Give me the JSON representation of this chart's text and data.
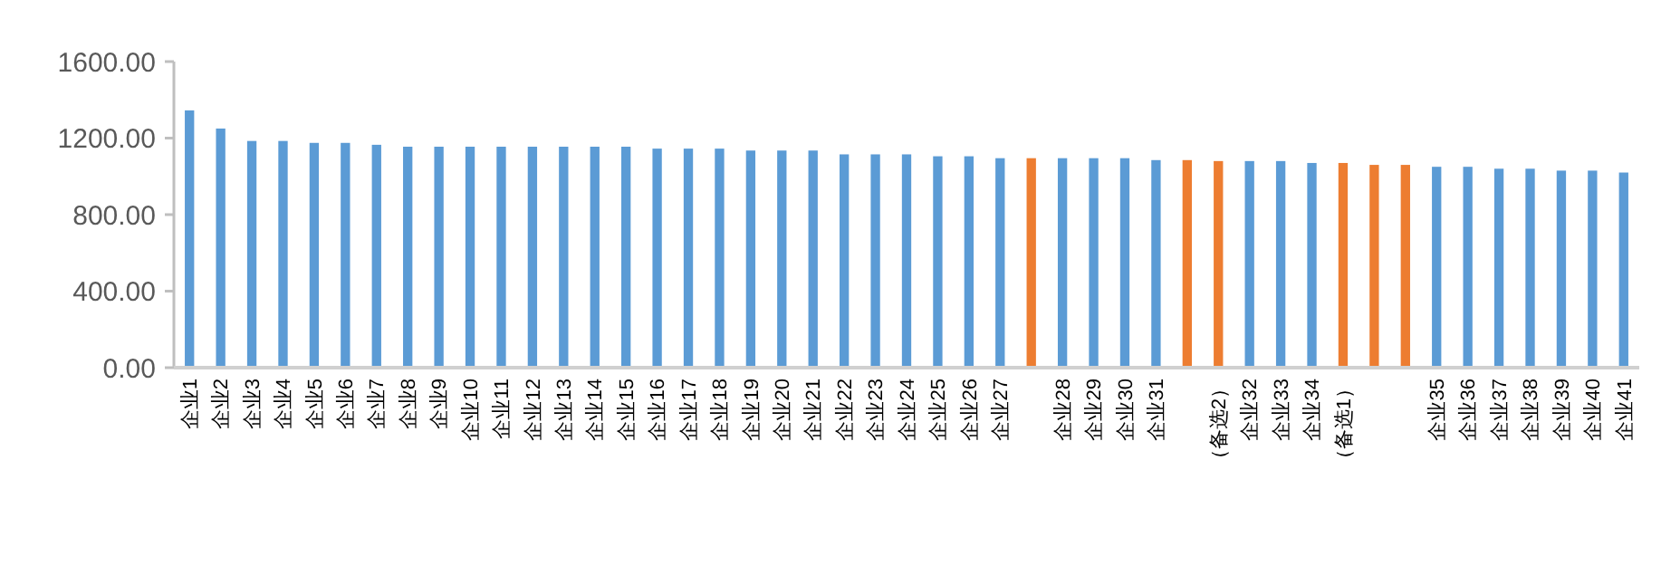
{
  "chart_data": {
    "type": "bar",
    "categories": [
      "企业1",
      "企业2",
      "企业3",
      "企业4",
      "企业5",
      "企业6",
      "企业7",
      "企业8",
      "企业9",
      "企业10",
      "企业11",
      "企业12",
      "企业13",
      "企业14",
      "企业15",
      "企业16",
      "企业17",
      "企业18",
      "企业19",
      "企业20",
      "企业21",
      "企业22",
      "企业23",
      "企业24",
      "企业25",
      "企业26",
      "企业27",
      null,
      "企业28",
      "企业29",
      "企业30",
      "企业31",
      null,
      "（备选2）",
      "企业32",
      "企业33",
      "企业34",
      "（备选1）",
      null,
      null,
      "企业35",
      "企业36",
      "企业37",
      "企业38",
      "企业39",
      "企业40",
      "企业41"
    ],
    "values": [
      1345,
      1250,
      1185,
      1185,
      1175,
      1175,
      1165,
      1155,
      1155,
      1155,
      1155,
      1155,
      1155,
      1155,
      1155,
      1145,
      1145,
      1145,
      1135,
      1135,
      1135,
      1115,
      1115,
      1115,
      1105,
      1105,
      1095,
      1095,
      1095,
      1095,
      1095,
      1085,
      1085,
      1080,
      1080,
      1080,
      1070,
      1070,
      1060,
      1060,
      1050,
      1050,
      1040,
      1040,
      1030,
      1030,
      1020
    ],
    "colors": [
      "#5b9bd5",
      "#5b9bd5",
      "#5b9bd5",
      "#5b9bd5",
      "#5b9bd5",
      "#5b9bd5",
      "#5b9bd5",
      "#5b9bd5",
      "#5b9bd5",
      "#5b9bd5",
      "#5b9bd5",
      "#5b9bd5",
      "#5b9bd5",
      "#5b9bd5",
      "#5b9bd5",
      "#5b9bd5",
      "#5b9bd5",
      "#5b9bd5",
      "#5b9bd5",
      "#5b9bd5",
      "#5b9bd5",
      "#5b9bd5",
      "#5b9bd5",
      "#5b9bd5",
      "#5b9bd5",
      "#5b9bd5",
      "#5b9bd5",
      "#ed7d31",
      "#5b9bd5",
      "#5b9bd5",
      "#5b9bd5",
      "#5b9bd5",
      "#ed7d31",
      "#ed7d31",
      "#5b9bd5",
      "#5b9bd5",
      "#5b9bd5",
      "#ed7d31",
      "#ed7d31",
      "#ed7d31",
      "#5b9bd5",
      "#5b9bd5",
      "#5b9bd5",
      "#5b9bd5",
      "#5b9bd5",
      "#5b9bd5",
      "#5b9bd5"
    ],
    "ylim": [
      0,
      1600
    ],
    "yticks": [
      {
        "value": 0,
        "label": "0.00"
      },
      {
        "value": 400,
        "label": "400.00"
      },
      {
        "value": 800,
        "label": "800.00"
      },
      {
        "value": 1200,
        "label": "1200.00"
      },
      {
        "value": 1600,
        "label": "1600.00"
      }
    ],
    "grid": false
  }
}
